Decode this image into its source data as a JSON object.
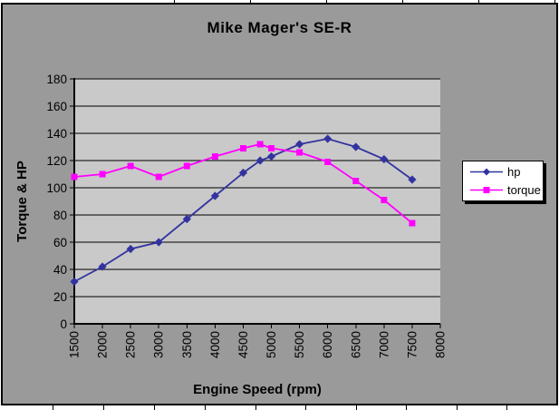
{
  "chart": {
    "title": "Mike Mager's SE-R",
    "x_axis_title": "Engine Speed (rpm)",
    "y_axis_title": "Torque & HP"
  },
  "chart_data": {
    "type": "line",
    "title": "Mike Mager's SE-R",
    "xlabel": "Engine Speed (rpm)",
    "ylabel": "Torque & HP",
    "x": [
      1500,
      2000,
      2500,
      3000,
      3500,
      4000,
      4500,
      4800,
      5000,
      5500,
      6000,
      6500,
      7000,
      7500
    ],
    "series": [
      {
        "name": "hp",
        "color": "#3333a0",
        "marker": "diamond",
        "values": [
          31,
          42,
          55,
          60,
          77,
          94,
          111,
          120,
          123,
          132,
          136,
          130,
          121,
          106
        ]
      },
      {
        "name": "torque",
        "color": "#ff00ff",
        "marker": "square",
        "values": [
          108,
          110,
          116,
          108,
          116,
          123,
          129,
          132,
          129,
          126,
          119,
          105,
          91,
          74
        ]
      }
    ],
    "xlim": [
      1500,
      8000
    ],
    "ylim": [
      0,
      180
    ],
    "x_ticks": [
      1500,
      2000,
      2500,
      3000,
      3500,
      4000,
      4500,
      5000,
      5500,
      6000,
      6500,
      7000,
      7500,
      8000
    ],
    "y_ticks": [
      0,
      20,
      40,
      60,
      80,
      100,
      120,
      140,
      160,
      180
    ],
    "grid": "horizontal",
    "legend_position": "right",
    "colors": {
      "chart_bg": "#9a9a9a",
      "plot_bg": "#c9c9c9",
      "axis": "#000000",
      "text": "#000000",
      "legend_bg": "#ffffff",
      "hp": "#3333a0",
      "torque": "#ff00ff"
    }
  }
}
